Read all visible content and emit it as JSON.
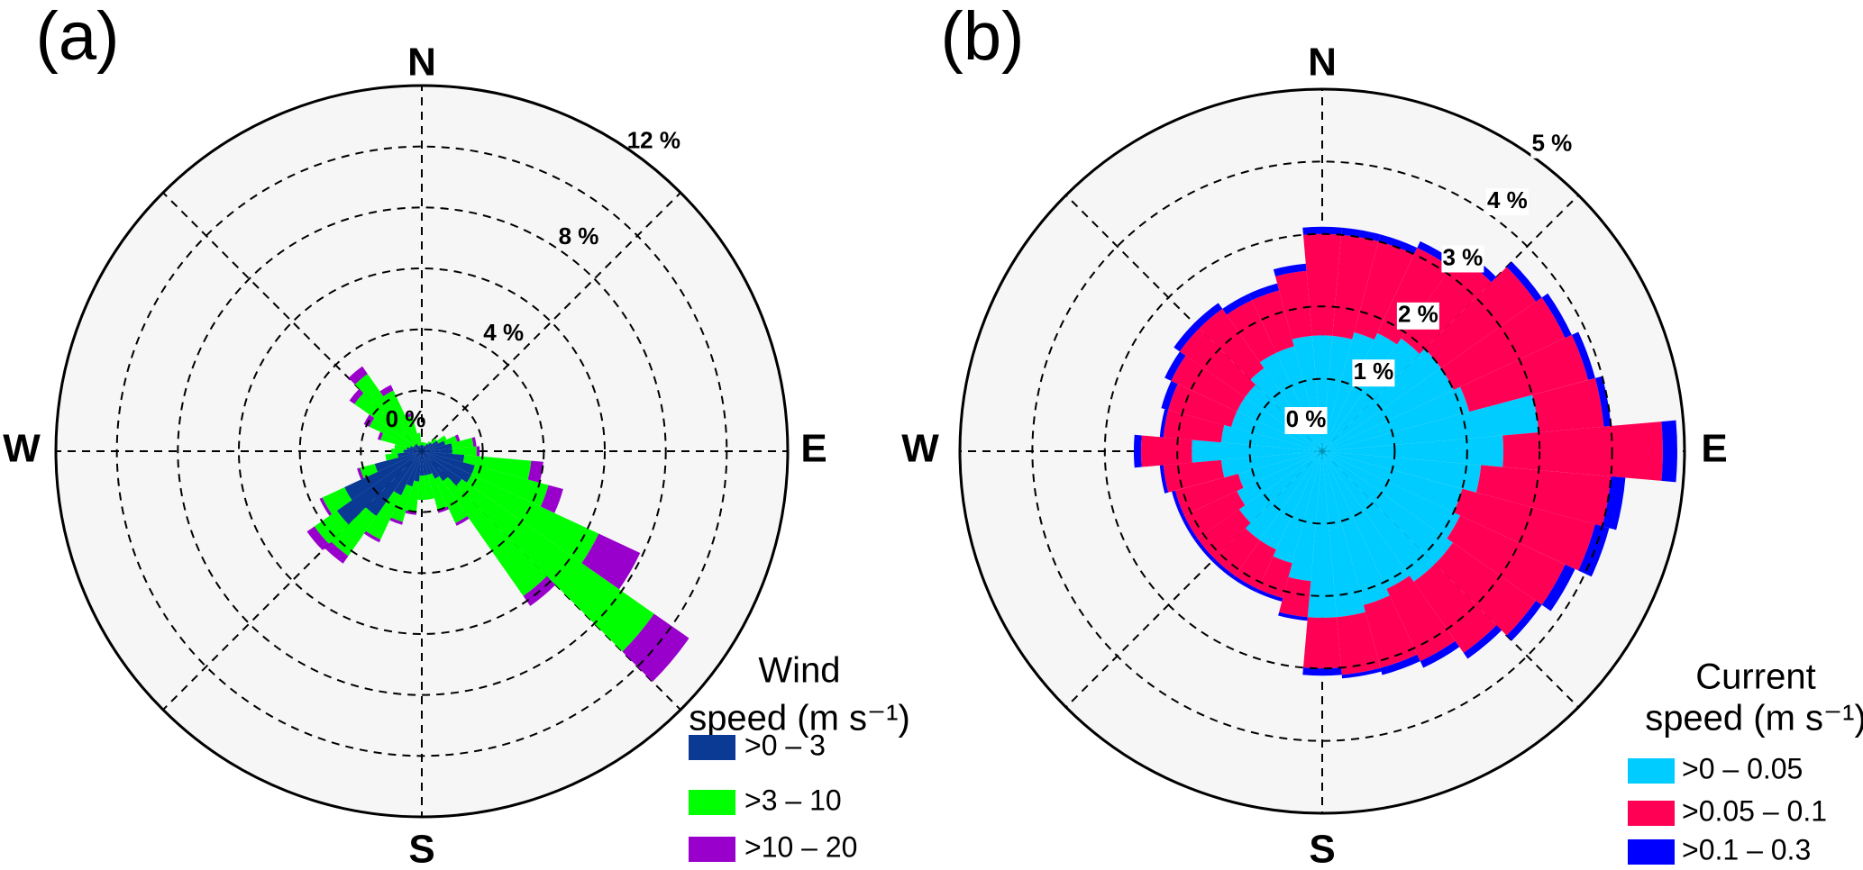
{
  "chart_data": [
    {
      "type": "windrose",
      "panel_label": "(a)",
      "compass": [
        "N",
        "E",
        "S",
        "W"
      ],
      "x": [
        0,
        10,
        20,
        30,
        40,
        50,
        60,
        70,
        80,
        90,
        100,
        110,
        120,
        130,
        140,
        150,
        160,
        170,
        180,
        190,
        200,
        210,
        220,
        230,
        240,
        250,
        260,
        270,
        280,
        290,
        300,
        310,
        320,
        330,
        340,
        350
      ],
      "series": [
        {
          "name": ">0 – 3",
          "color": "#0a3a94",
          "values": [
            0.2,
            0.2,
            0.2,
            0.2,
            0.3,
            0.4,
            0.6,
            0.8,
            1.0,
            1.0,
            1.4,
            1.8,
            1.8,
            1.6,
            1.2,
            1.0,
            0.8,
            0.8,
            0.8,
            1.0,
            1.2,
            1.6,
            2.6,
            3.4,
            2.8,
            1.6,
            0.8,
            0.6,
            0.5,
            0.4,
            0.3,
            0.3,
            0.3,
            0.2,
            0.2,
            0.2
          ]
        },
        {
          "name": ">3 – 10",
          "color": "#00ff00",
          "values": [
            0.1,
            0.1,
            0.1,
            0.1,
            0.1,
            0.2,
            0.3,
            0.4,
            0.7,
            0.8,
            2.2,
            2.5,
            4.6,
            7.7,
            4.6,
            1.6,
            1.2,
            0.8,
            0.8,
            1.0,
            1.2,
            1.6,
            1.6,
            0.9,
            0.8,
            0.5,
            0.4,
            0.4,
            0.4,
            1.0,
            1.6,
            2.4,
            2.8,
            2.0,
            1.0,
            0.4
          ]
        },
        {
          "name": ">10 – 20",
          "color": "#9900cc",
          "values": [
            0,
            0,
            0,
            0,
            0,
            0,
            0,
            0.1,
            0.1,
            0.1,
            0.4,
            0.5,
            1.5,
            1.4,
            0.4,
            0.1,
            0.1,
            0,
            0,
            0.1,
            0.1,
            0.1,
            0.3,
            0.3,
            0.1,
            0.1,
            0,
            0,
            0,
            0.1,
            0.2,
            0.2,
            0.3,
            0.2,
            0.1,
            0
          ]
        }
      ],
      "rlim": [
        0,
        12
      ],
      "rticks": [
        {
          "value": 0,
          "label": "0 %"
        },
        {
          "value": 4,
          "label": "4 %"
        },
        {
          "value": 8,
          "label": "8 %"
        },
        {
          "value": 12,
          "label": "12 %"
        }
      ],
      "rminor": [
        2,
        6,
        10
      ],
      "legend_title": [
        "Wind",
        "speed (m s⁻¹)"
      ],
      "tick_label_box": false
    },
    {
      "type": "windrose",
      "panel_label": "(b)",
      "compass": [
        "N",
        "E",
        "S",
        "W"
      ],
      "x": [
        0,
        10,
        20,
        30,
        40,
        50,
        60,
        70,
        80,
        90,
        100,
        110,
        120,
        130,
        140,
        150,
        160,
        170,
        180,
        190,
        200,
        210,
        220,
        230,
        240,
        250,
        260,
        270,
        280,
        290,
        300,
        310,
        320,
        330,
        340,
        350
      ],
      "series": [
        {
          "name": ">0 – 0.05",
          "color": "#00ccff",
          "values": [
            1.6,
            1.6,
            1.7,
            1.8,
            1.9,
            2.0,
            2.0,
            2.1,
            3.0,
            2.5,
            2.2,
            2.0,
            2.1,
            2.2,
            2.2,
            2.1,
            2.2,
            2.3,
            2.3,
            1.8,
            1.6,
            1.5,
            1.5,
            1.4,
            1.3,
            1.2,
            1.4,
            1.8,
            1.4,
            1.3,
            1.3,
            1.3,
            1.4,
            1.5,
            1.5,
            1.6
          ]
        },
        {
          "name": ">0.05 – 0.1",
          "color": "#ff0055",
          "values": [
            1.4,
            1.4,
            1.3,
            1.3,
            1.4,
            1.6,
            1.7,
            1.7,
            0.9,
            2.2,
            1.8,
            1.9,
            1.6,
            1.4,
            1.2,
            1.1,
            0.9,
            0.8,
            0.7,
            0.5,
            0.5,
            0.6,
            0.6,
            0.7,
            0.8,
            0.9,
            0.8,
            0.7,
            0.8,
            0.9,
            1.0,
            1.1,
            1.0,
            0.8,
            0.8,
            0.9
          ]
        },
        {
          "name": ">0.1 – 0.3",
          "color": "#0000ff",
          "values": [
            0.1,
            0.1,
            0.1,
            0.1,
            0.1,
            0.1,
            0.1,
            0.1,
            0.1,
            0.2,
            0.2,
            0.2,
            0.15,
            0.1,
            0.1,
            0.1,
            0.1,
            0.05,
            0.1,
            0.05,
            0.05,
            0.05,
            0.05,
            0.05,
            0.05,
            0.05,
            0.05,
            0.1,
            0.05,
            0.1,
            0.1,
            0.1,
            0.1,
            0.1,
            0.1,
            0.1
          ]
        }
      ],
      "rlim": [
        0,
        5
      ],
      "rticks": [
        {
          "value": 0,
          "label": "0 %"
        },
        {
          "value": 1,
          "label": "1 %"
        },
        {
          "value": 2,
          "label": "2 %"
        },
        {
          "value": 3,
          "label": "3 %"
        },
        {
          "value": 4,
          "label": "4 %"
        },
        {
          "value": 5,
          "label": "5 %"
        }
      ],
      "rminor": [],
      "legend_title": [
        "Current",
        "speed (m s⁻¹)"
      ],
      "tick_label_box": true
    }
  ]
}
